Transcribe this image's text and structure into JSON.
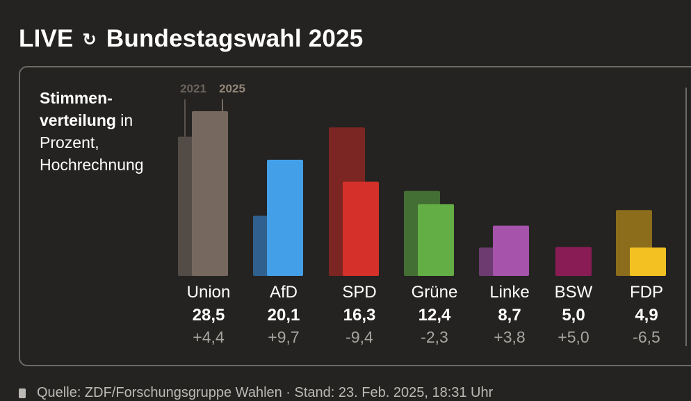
{
  "header": {
    "live_label": "LIVE",
    "title": "Bundestagswahl 2025"
  },
  "description": {
    "bold": "Stimmen-verteilung",
    "bold_line1": "Stimmen-",
    "bold_line2": "verteilung",
    "rest_line2": " in",
    "line3": "Prozent,",
    "line4": "Hochrechnung"
  },
  "footer": {
    "text": "Quelle: ZDF/Forschungsgruppe Wahlen · Stand: 23. Feb. 2025, 18:31 Uhr"
  },
  "chart_data": {
    "type": "bar",
    "legend": [
      "2021",
      "2025"
    ],
    "categories": [
      "Union",
      "AfD",
      "SPD",
      "Grüne",
      "Linke",
      "BSW",
      "FDP"
    ],
    "series": [
      {
        "name": "2021",
        "values": [
          24.1,
          10.4,
          25.7,
          14.7,
          4.9,
          0,
          11.4
        ]
      },
      {
        "name": "2025",
        "values": [
          28.5,
          20.1,
          16.3,
          12.4,
          8.7,
          5.0,
          4.9
        ]
      }
    ],
    "value_labels": [
      "28,5",
      "20,1",
      "16,3",
      "12,4",
      "8,7",
      "5,0",
      "4,9"
    ],
    "change_labels": [
      "+4,4",
      "+9,7",
      "-9,4",
      "-2,3",
      "+3,8",
      "+5,0",
      "-6,5"
    ],
    "colors_2025": [
      "#77685f",
      "#43a0e8",
      "#d53029",
      "#64ae46",
      "#a553ab",
      "#8a1c55",
      "#f3c122"
    ],
    "colors_2021": [
      "#524b46",
      "#30608e",
      "#7b2623",
      "#436e34",
      "#6d3b70",
      "#8a1c55",
      "#8c6d1c"
    ],
    "ylim": [
      0,
      30
    ],
    "grid": false
  }
}
